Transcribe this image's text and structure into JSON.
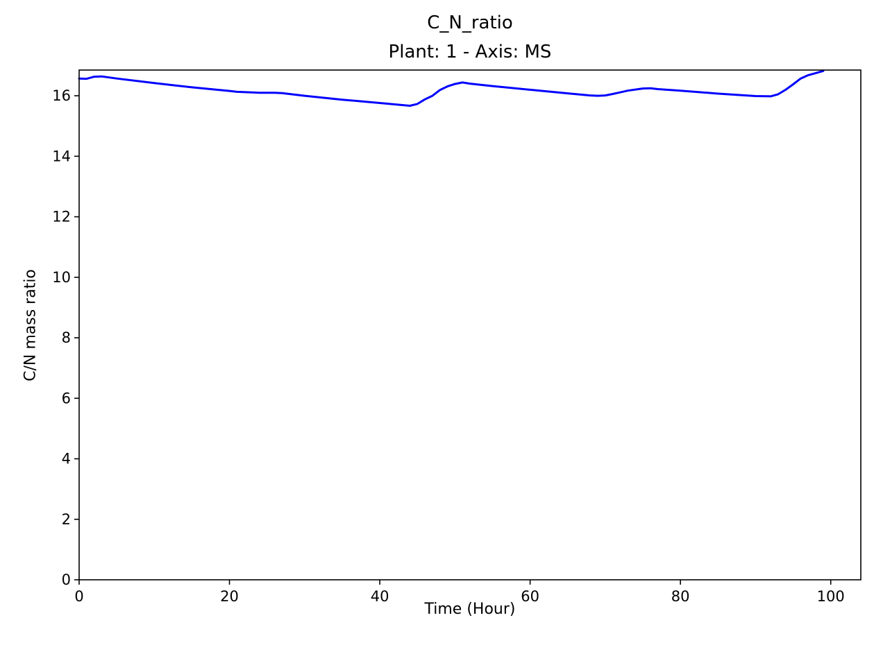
{
  "chart_data": {
    "type": "line",
    "title": "C_N_ratio",
    "subtitle": "Plant: 1 - Axis: MS",
    "xlabel": "Time (Hour)",
    "ylabel": "C/N mass ratio",
    "xlim": [
      0,
      104
    ],
    "ylim": [
      0,
      16.85
    ],
    "xticks": [
      0,
      20,
      40,
      60,
      80,
      100
    ],
    "yticks": [
      0,
      2,
      4,
      6,
      8,
      10,
      12,
      14,
      16
    ],
    "grid": false,
    "series": [
      {
        "color": "#0000ff",
        "x": [
          0,
          1,
          2,
          3,
          5,
          10,
          15,
          20,
          21,
          23,
          24,
          25,
          26,
          27,
          30,
          35,
          40,
          44,
          45,
          46,
          47,
          48,
          49,
          50,
          51,
          52,
          55,
          60,
          65,
          68,
          69,
          70,
          71,
          73,
          75,
          76,
          77,
          80,
          85,
          90,
          92,
          93,
          94,
          95,
          96,
          97,
          98,
          99
        ],
        "y": [
          16.57,
          16.56,
          16.63,
          16.64,
          16.57,
          16.42,
          16.28,
          16.16,
          16.13,
          16.11,
          16.1,
          16.1,
          16.1,
          16.09,
          16.0,
          15.87,
          15.76,
          15.67,
          15.73,
          15.88,
          16.0,
          16.19,
          16.31,
          16.39,
          16.44,
          16.4,
          16.32,
          16.2,
          16.08,
          16.01,
          16.0,
          16.01,
          16.06,
          16.17,
          16.24,
          16.25,
          16.22,
          16.17,
          16.07,
          15.99,
          15.98,
          16.05,
          16.2,
          16.38,
          16.57,
          16.68,
          16.75,
          16.82
        ]
      }
    ]
  }
}
